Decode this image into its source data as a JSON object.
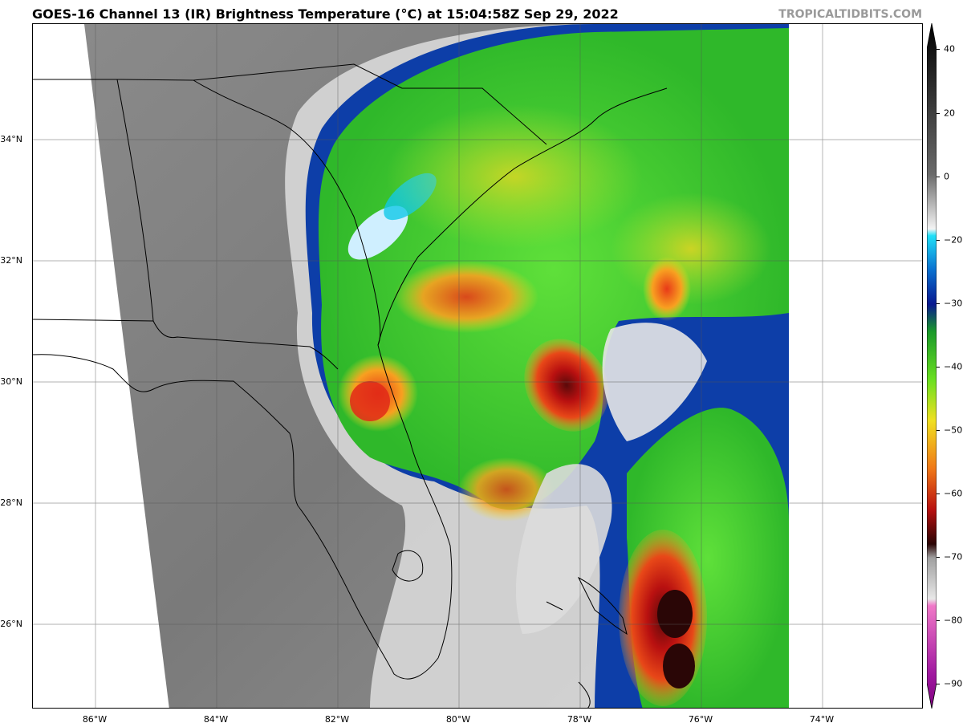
{
  "header": {
    "title": "GOES-16 Channel 13 (IR) Brightness Temperature (°C) at 15:04:58Z Sep 29, 2022",
    "credit": "TROPICALTIDBITS.COM"
  },
  "map": {
    "lat_labels": [
      "34°N",
      "32°N",
      "30°N",
      "28°N",
      "26°N"
    ],
    "lon_labels": [
      "86°W",
      "84°W",
      "82°W",
      "80°W",
      "78°W",
      "76°W",
      "74°W"
    ],
    "colorbar_labels": [
      "40",
      "20",
      "0",
      "−20",
      "−30",
      "−40",
      "−50",
      "−60",
      "−70",
      "−80",
      "−90"
    ],
    "colorbar_values": [
      40,
      20,
      0,
      -20,
      -30,
      -40,
      -50,
      -60,
      -70,
      -80,
      -90
    ],
    "colorbar_range": [
      -95,
      45
    ]
  },
  "colors": {
    "cold_red": "#c81818",
    "green": "#3fcf2a",
    "yellow": "#f0f020",
    "blue": "#0a2aa0",
    "cyan": "#10d8f0"
  }
}
